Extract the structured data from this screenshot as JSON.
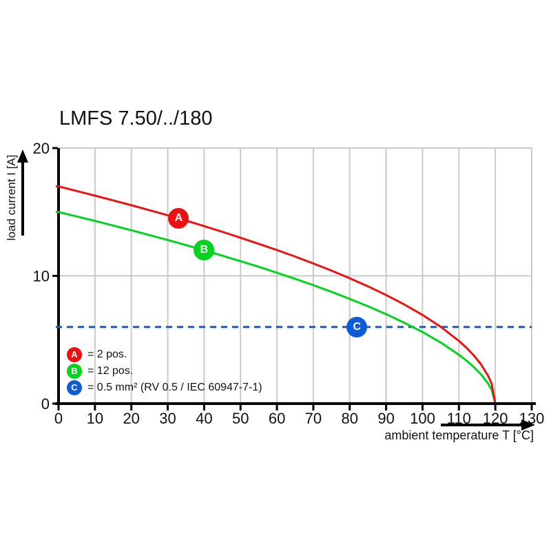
{
  "title": "LMFS 7.50/../180",
  "colors": {
    "red": "#ee1111",
    "green": "#00d41e",
    "blue": "#0d5cd6",
    "grid": "#c9c9c9",
    "axis": "#000000",
    "text": "#111111"
  },
  "x_axis": {
    "label": "ambient temperature T [°C]",
    "ticks": [
      0,
      10,
      20,
      30,
      40,
      50,
      60,
      70,
      80,
      90,
      100,
      110,
      120,
      130
    ],
    "range": [
      0,
      130
    ]
  },
  "y_axis": {
    "label": "load current I [A]",
    "ticks": [
      0,
      10,
      20
    ],
    "gridline_values": [
      10,
      20
    ],
    "range": [
      0,
      20
    ]
  },
  "legend": {
    "items": [
      {
        "letter": "A",
        "color": "#ee1111",
        "text": "= 2 pos."
      },
      {
        "letter": "B",
        "color": "#00d41e",
        "text": "= 12 pos."
      },
      {
        "letter": "C",
        "color": "#0d5cd6",
        "text": "= 0.5 mm² (RV 0.5 / IEC 60947-7-1)"
      }
    ]
  },
  "chart_data": {
    "type": "line",
    "title": "LMFS 7.50/../180",
    "xlabel": "ambient temperature T [°C]",
    "ylabel": "load current I [A]",
    "xlim": [
      0,
      130
    ],
    "ylim": [
      0,
      20
    ],
    "grid": "on",
    "legend_position": "lower-left",
    "series": [
      {
        "name": "A = 2 pos.",
        "color": "#ee1111",
        "style": "solid",
        "points": [
          [
            0,
            17
          ],
          [
            5,
            16.64
          ],
          [
            10,
            16.28
          ],
          [
            15,
            15.91
          ],
          [
            20,
            15.53
          ],
          [
            25,
            15.14
          ],
          [
            30,
            14.74
          ],
          [
            35,
            14.33
          ],
          [
            40,
            13.89
          ],
          [
            45,
            13.45
          ],
          [
            50,
            12.98
          ],
          [
            55,
            12.5
          ],
          [
            60,
            12.02
          ],
          [
            65,
            11.51
          ],
          [
            70,
            10.97
          ],
          [
            75,
            10.41
          ],
          [
            80,
            9.81
          ],
          [
            85,
            9.18
          ],
          [
            90,
            8.5
          ],
          [
            95,
            7.76
          ],
          [
            100,
            6.94
          ],
          [
            105,
            6.01
          ],
          [
            110,
            4.91
          ],
          [
            112,
            4.39
          ],
          [
            114,
            3.8
          ],
          [
            116,
            3.1
          ],
          [
            118,
            2.19
          ],
          [
            119,
            1.55
          ],
          [
            120,
            0
          ]
        ]
      },
      {
        "name": "B = 12 pos.",
        "color": "#00d41e",
        "style": "solid",
        "points": [
          [
            0,
            15
          ],
          [
            5,
            14.65
          ],
          [
            10,
            14.3
          ],
          [
            15,
            13.94
          ],
          [
            20,
            13.57
          ],
          [
            25,
            13.19
          ],
          [
            30,
            12.81
          ],
          [
            35,
            12.41
          ],
          [
            40,
            12
          ],
          [
            45,
            11.58
          ],
          [
            50,
            11.15
          ],
          [
            55,
            10.71
          ],
          [
            60,
            10.24
          ],
          [
            65,
            9.77
          ],
          [
            70,
            9.27
          ],
          [
            75,
            8.75
          ],
          [
            80,
            8.2
          ],
          [
            85,
            7.62
          ],
          [
            90,
            7
          ],
          [
            95,
            6.33
          ],
          [
            100,
            5.6
          ],
          [
            105,
            4.78
          ],
          [
            110,
            3.82
          ],
          [
            112,
            3.38
          ],
          [
            114,
            2.89
          ],
          [
            116,
            2.31
          ],
          [
            118,
            1.58
          ],
          [
            119,
            1.08
          ],
          [
            120,
            0
          ]
        ]
      },
      {
        "name": "C = 0.5 mm² (RV 0.5 / IEC 60947-7-1)",
        "color": "#0d5cd6",
        "style": "dashed",
        "points": [
          [
            0,
            6
          ],
          [
            130,
            6
          ]
        ]
      }
    ],
    "markers": [
      {
        "label": "A",
        "x": 33,
        "y": 14.48,
        "color": "#ee1111"
      },
      {
        "label": "B",
        "x": 40,
        "y": 12.0,
        "color": "#00d41e"
      },
      {
        "label": "C",
        "x": 82,
        "y": 6.0,
        "color": "#0d5cd6"
      }
    ]
  }
}
